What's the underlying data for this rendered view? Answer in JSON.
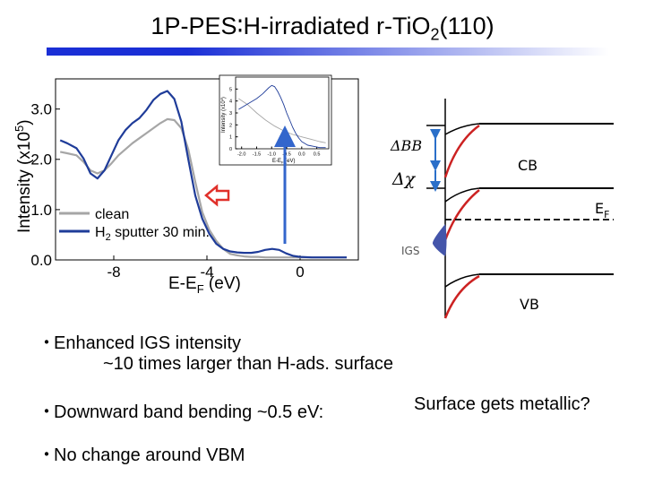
{
  "slide": {
    "title_main": "1P-PES∶H-irradiated r-TiO",
    "title_sub": "2",
    "title_end": "(110)",
    "title_bar_colors": [
      "#1a2fd6",
      "#ffffff"
    ]
  },
  "chart_data": [
    {
      "type": "line",
      "xlabel": "E-EF (eV)",
      "ylabel": "Intensity (x10^5)",
      "xlim": [
        -10.5,
        2.5
      ],
      "ylim": [
        0,
        3.6
      ],
      "x_ticks": [
        "-8",
        "-4",
        "0"
      ],
      "y_ticks": [
        "0.0",
        "1.0",
        "2.0",
        "3.0"
      ],
      "legend_position": "bottom-left",
      "series": [
        {
          "name": "clean",
          "color": "#a6a6a6",
          "x": [
            -10.3,
            -10.0,
            -9.6,
            -9.3,
            -9.0,
            -8.7,
            -8.4,
            -8.1,
            -7.8,
            -7.5,
            -7.2,
            -6.9,
            -6.6,
            -6.3,
            -6.0,
            -5.7,
            -5.4,
            -5.1,
            -4.8,
            -4.5,
            -4.2,
            -3.9,
            -3.6,
            -3.3,
            -3.0,
            -2.7,
            -2.4,
            -2.1,
            -1.8,
            -1.5,
            -1.2,
            -0.9,
            -0.6,
            -0.3,
            0.0,
            0.5,
            1.0,
            1.5,
            2.0
          ],
          "y": [
            2.15,
            2.12,
            2.08,
            1.95,
            1.78,
            1.72,
            1.78,
            1.92,
            2.08,
            2.2,
            2.32,
            2.42,
            2.52,
            2.62,
            2.72,
            2.8,
            2.78,
            2.62,
            2.2,
            1.55,
            0.95,
            0.6,
            0.38,
            0.22,
            0.12,
            0.09,
            0.07,
            0.06,
            0.06,
            0.05,
            0.05,
            0.05,
            0.05,
            0.05,
            0.05,
            0.05,
            0.05,
            0.05,
            0.05
          ]
        },
        {
          "name": "H2 sputter 30 min.",
          "color": "#1f3c99",
          "x": [
            -10.3,
            -10.0,
            -9.6,
            -9.3,
            -9.0,
            -8.7,
            -8.4,
            -8.1,
            -7.8,
            -7.5,
            -7.2,
            -6.9,
            -6.6,
            -6.3,
            -6.0,
            -5.7,
            -5.4,
            -5.1,
            -4.8,
            -4.5,
            -4.2,
            -3.9,
            -3.6,
            -3.3,
            -3.0,
            -2.7,
            -2.4,
            -2.1,
            -1.8,
            -1.5,
            -1.2,
            -0.9,
            -0.6,
            -0.3,
            0.0,
            0.5,
            1.0,
            1.5,
            2.0
          ],
          "y": [
            2.38,
            2.32,
            2.22,
            2.02,
            1.72,
            1.62,
            1.78,
            2.08,
            2.38,
            2.58,
            2.72,
            2.82,
            2.98,
            3.18,
            3.3,
            3.36,
            3.2,
            2.75,
            2.0,
            1.28,
            0.82,
            0.52,
            0.32,
            0.22,
            0.17,
            0.15,
            0.14,
            0.14,
            0.16,
            0.2,
            0.22,
            0.2,
            0.13,
            0.08,
            0.06,
            0.05,
            0.05,
            0.05,
            0.05
          ]
        }
      ]
    },
    {
      "type": "line",
      "xlabel": "E-EF (eV)",
      "ylabel": "Intensity (x10^4)",
      "xlim": [
        -2.2,
        0.9
      ],
      "ylim": [
        0,
        6.0
      ],
      "x_ticks": [
        "-2.0",
        "-1.5",
        "-1.0",
        "-0.5",
        "0.0",
        "0.5"
      ],
      "y_ticks": [
        "0",
        "1",
        "2",
        "3",
        "4",
        "5"
      ],
      "series": [
        {
          "color": "#a6a6a6",
          "x": [
            -2.1,
            -1.8,
            -1.5,
            -1.2,
            -0.9,
            -0.6,
            -0.3,
            0.0,
            0.3,
            0.6,
            0.8
          ],
          "y": [
            4.2,
            3.7,
            3.0,
            2.4,
            1.9,
            1.5,
            1.2,
            1.0,
            0.8,
            0.6,
            0.5
          ]
        },
        {
          "color": "#1f3c99",
          "x": [
            -2.1,
            -1.9,
            -1.7,
            -1.5,
            -1.3,
            -1.1,
            -1.0,
            -0.9,
            -0.8,
            -0.7,
            -0.6,
            -0.5,
            -0.4,
            -0.3,
            -0.2,
            -0.1,
            0.0,
            0.2,
            0.4,
            0.6,
            0.8
          ],
          "y": [
            3.3,
            3.6,
            3.9,
            4.2,
            4.6,
            5.1,
            5.3,
            5.2,
            4.8,
            4.3,
            3.7,
            3.0,
            2.4,
            1.8,
            1.3,
            0.9,
            0.6,
            0.3,
            0.2,
            0.1,
            0.1
          ]
        }
      ]
    }
  ],
  "diagram": {
    "labels": {
      "bb": "ΔBB",
      "chi": "Δχ",
      "cb": "CB",
      "ef": "E",
      "ef_sub": "F",
      "igs": "IGS",
      "vb": "VB"
    },
    "colors": {
      "band_red": "#cc2222",
      "band_black": "#000000",
      "arrow_blue": "#2a6fc9",
      "igs_fill": "#4455aa",
      "inset_arrow": "#3366cc",
      "hollow_arrow": "#e0302a"
    }
  },
  "bullets": {
    "b1_line1": "Enhanced IGS intensity",
    "b1_line2": "~10 times larger than H-ads. surface",
    "b2": "Downward band bending ~0.5 eV:",
    "b2_side": "Surface gets metallic?",
    "b3": "No change around VBM",
    "marker": "・"
  }
}
